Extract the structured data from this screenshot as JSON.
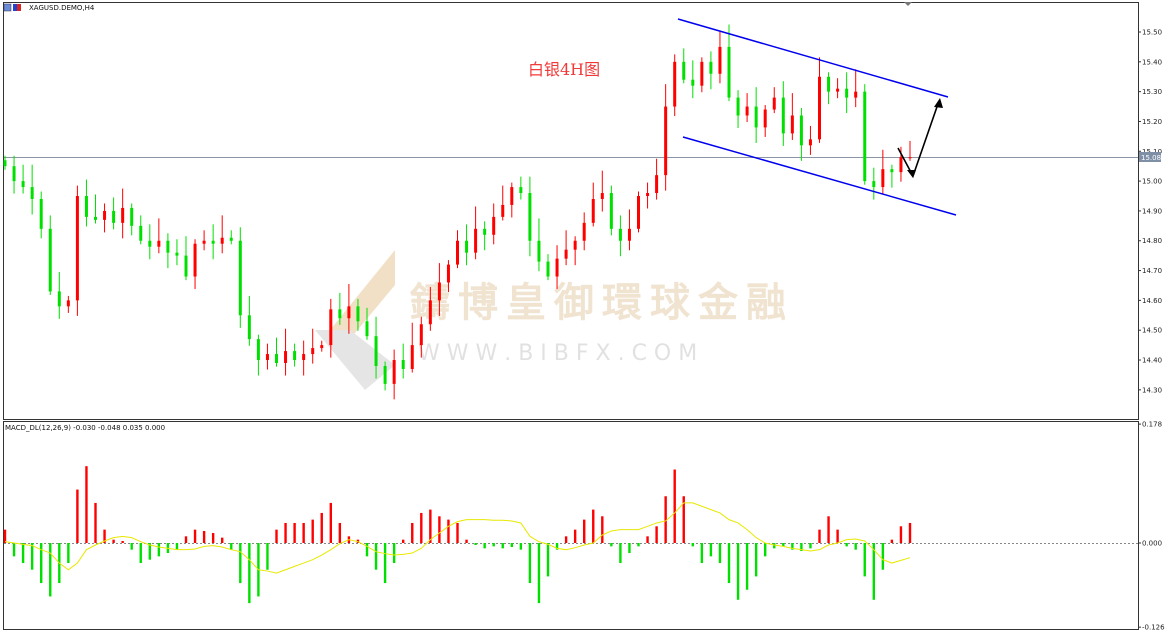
{
  "header": {
    "symbol_label": "XAGUSD.DEMO,H4"
  },
  "annotation_title": "白银4H图",
  "watermark": {
    "cn": "鑄博皇御環球金融",
    "url": "W W W . B I B F X . C O M"
  },
  "colors": {
    "bull": "#ff0000",
    "bear": "#00e000",
    "channel": "#0000ee",
    "signal": "#e8e800",
    "price_line": "#7f8c99"
  },
  "chart_data": [
    {
      "type": "candlestick",
      "title": "XAGUSD.DEMO,H4",
      "ylim": [
        14.25,
        15.55
      ],
      "y_ticks": [
        "15.50",
        "15.40",
        "15.30",
        "15.20",
        "15.10",
        "15.00",
        "14.90",
        "14.80",
        "14.70",
        "14.60",
        "14.50",
        "14.40",
        "14.30"
      ],
      "current_price": "15.08",
      "closes": [
        15.05,
        15.0,
        14.98,
        14.94,
        14.84,
        14.63,
        14.58,
        14.6,
        14.95,
        14.88,
        14.87,
        14.9,
        14.86,
        14.91,
        14.85,
        14.8,
        14.78,
        14.8,
        14.76,
        14.75,
        14.68,
        14.79,
        14.8,
        14.79,
        14.81,
        14.8,
        14.55,
        14.47,
        14.4,
        14.42,
        14.39,
        14.43,
        14.4,
        14.42,
        14.44,
        14.45,
        14.57,
        14.54,
        14.58,
        14.53,
        14.48,
        14.38,
        14.32,
        14.4,
        14.37,
        14.45,
        14.52,
        14.6,
        14.66,
        14.72,
        14.8,
        14.76,
        14.84,
        14.82,
        14.88,
        14.92,
        14.98,
        14.96,
        14.8,
        14.73,
        14.68,
        14.74,
        14.77,
        14.8,
        14.86,
        14.94,
        14.96,
        14.84,
        14.8,
        14.84,
        14.95,
        14.96,
        15.02,
        15.25,
        15.4,
        15.34,
        15.32,
        15.4,
        15.36,
        15.45,
        15.28,
        15.22,
        15.25,
        15.18,
        15.24,
        15.28,
        15.16,
        15.22,
        15.12,
        15.14,
        15.35,
        15.3,
        15.31,
        15.28,
        15.3,
        15.0,
        14.98,
        15.04,
        15.03,
        15.08,
        15.08
      ],
      "annotations": [
        "descending channel",
        "arrow down then up"
      ]
    },
    {
      "type": "bar+line",
      "title": "MACD_DL(12,26,9) -0.030 -0.048 0.035 0.000",
      "ylim": [
        -0.126,
        0.178
      ],
      "y_ticks": [
        "0.178",
        "0.000",
        "-0.126"
      ],
      "histogram": [
        0.02,
        -0.02,
        -0.03,
        -0.04,
        -0.06,
        -0.08,
        -0.06,
        -0.03,
        0.08,
        0.115,
        0.06,
        0.02,
        0.005,
        0.003,
        -0.01,
        -0.03,
        -0.025,
        -0.02,
        -0.015,
        -0.01,
        0.01,
        0.02,
        0.018,
        0.015,
        0.008,
        -0.01,
        -0.06,
        -0.09,
        -0.08,
        -0.04,
        0.02,
        0.03,
        0.03,
        0.03,
        0.035,
        0.045,
        0.06,
        0.03,
        0.01,
        0.005,
        -0.02,
        -0.04,
        -0.06,
        -0.03,
        0.005,
        0.03,
        0.045,
        0.05,
        0.04,
        0.035,
        0.03,
        0.005,
        -0.003,
        -0.008,
        -0.005,
        -0.008,
        -0.006,
        -0.01,
        -0.06,
        -0.09,
        -0.05,
        -0.01,
        0.01,
        0.02,
        0.035,
        0.05,
        0.04,
        -0.005,
        -0.03,
        -0.015,
        -0.005,
        0.01,
        0.025,
        0.07,
        0.11,
        0.07,
        -0.005,
        -0.03,
        -0.02,
        -0.03,
        -0.06,
        -0.085,
        -0.07,
        -0.05,
        -0.02,
        -0.008,
        -0.005,
        -0.01,
        -0.012,
        -0.008,
        0.02,
        0.04,
        0.02,
        -0.005,
        -0.01,
        -0.05,
        -0.085,
        -0.04,
        0.005,
        0.025,
        0.03
      ],
      "signal": [
        0.002,
        0,
        -0.002,
        -0.004,
        -0.01,
        -0.015,
        -0.03,
        -0.04,
        -0.03,
        -0.01,
        -0.003,
        0.003,
        0.008,
        0.01,
        0.008,
        0.002,
        -0.003,
        -0.006,
        -0.008,
        -0.01,
        -0.01,
        -0.009,
        -0.005,
        -0.004,
        -0.006,
        -0.01,
        -0.013,
        -0.025,
        -0.04,
        -0.042,
        -0.045,
        -0.04,
        -0.035,
        -0.03,
        -0.025,
        -0.018,
        -0.01,
        -0.001,
        0.005,
        0.002,
        -0.005,
        -0.013,
        -0.016,
        -0.018,
        -0.017,
        -0.015,
        -0.008,
        0.005,
        0.015,
        0.025,
        0.032,
        0.035,
        0.035,
        0.035,
        0.034,
        0.034,
        0.033,
        0.03,
        0.01,
        0.002,
        -0.002,
        -0.008,
        -0.01,
        -0.007,
        -0.003,
        0,
        0.012,
        0.018,
        0.02,
        0.02,
        0.02,
        0.025,
        0.03,
        0.033,
        0.045,
        0.06,
        0.06,
        0.055,
        0.05,
        0.045,
        0.035,
        0.03,
        0.02,
        0.008,
        0,
        -0.003,
        -0.005,
        -0.008,
        -0.01,
        -0.012,
        -0.01,
        -0.003,
        0,
        0.005,
        0.006,
        0.003,
        -0.01,
        -0.025,
        -0.03,
        -0.026,
        -0.022
      ]
    }
  ]
}
